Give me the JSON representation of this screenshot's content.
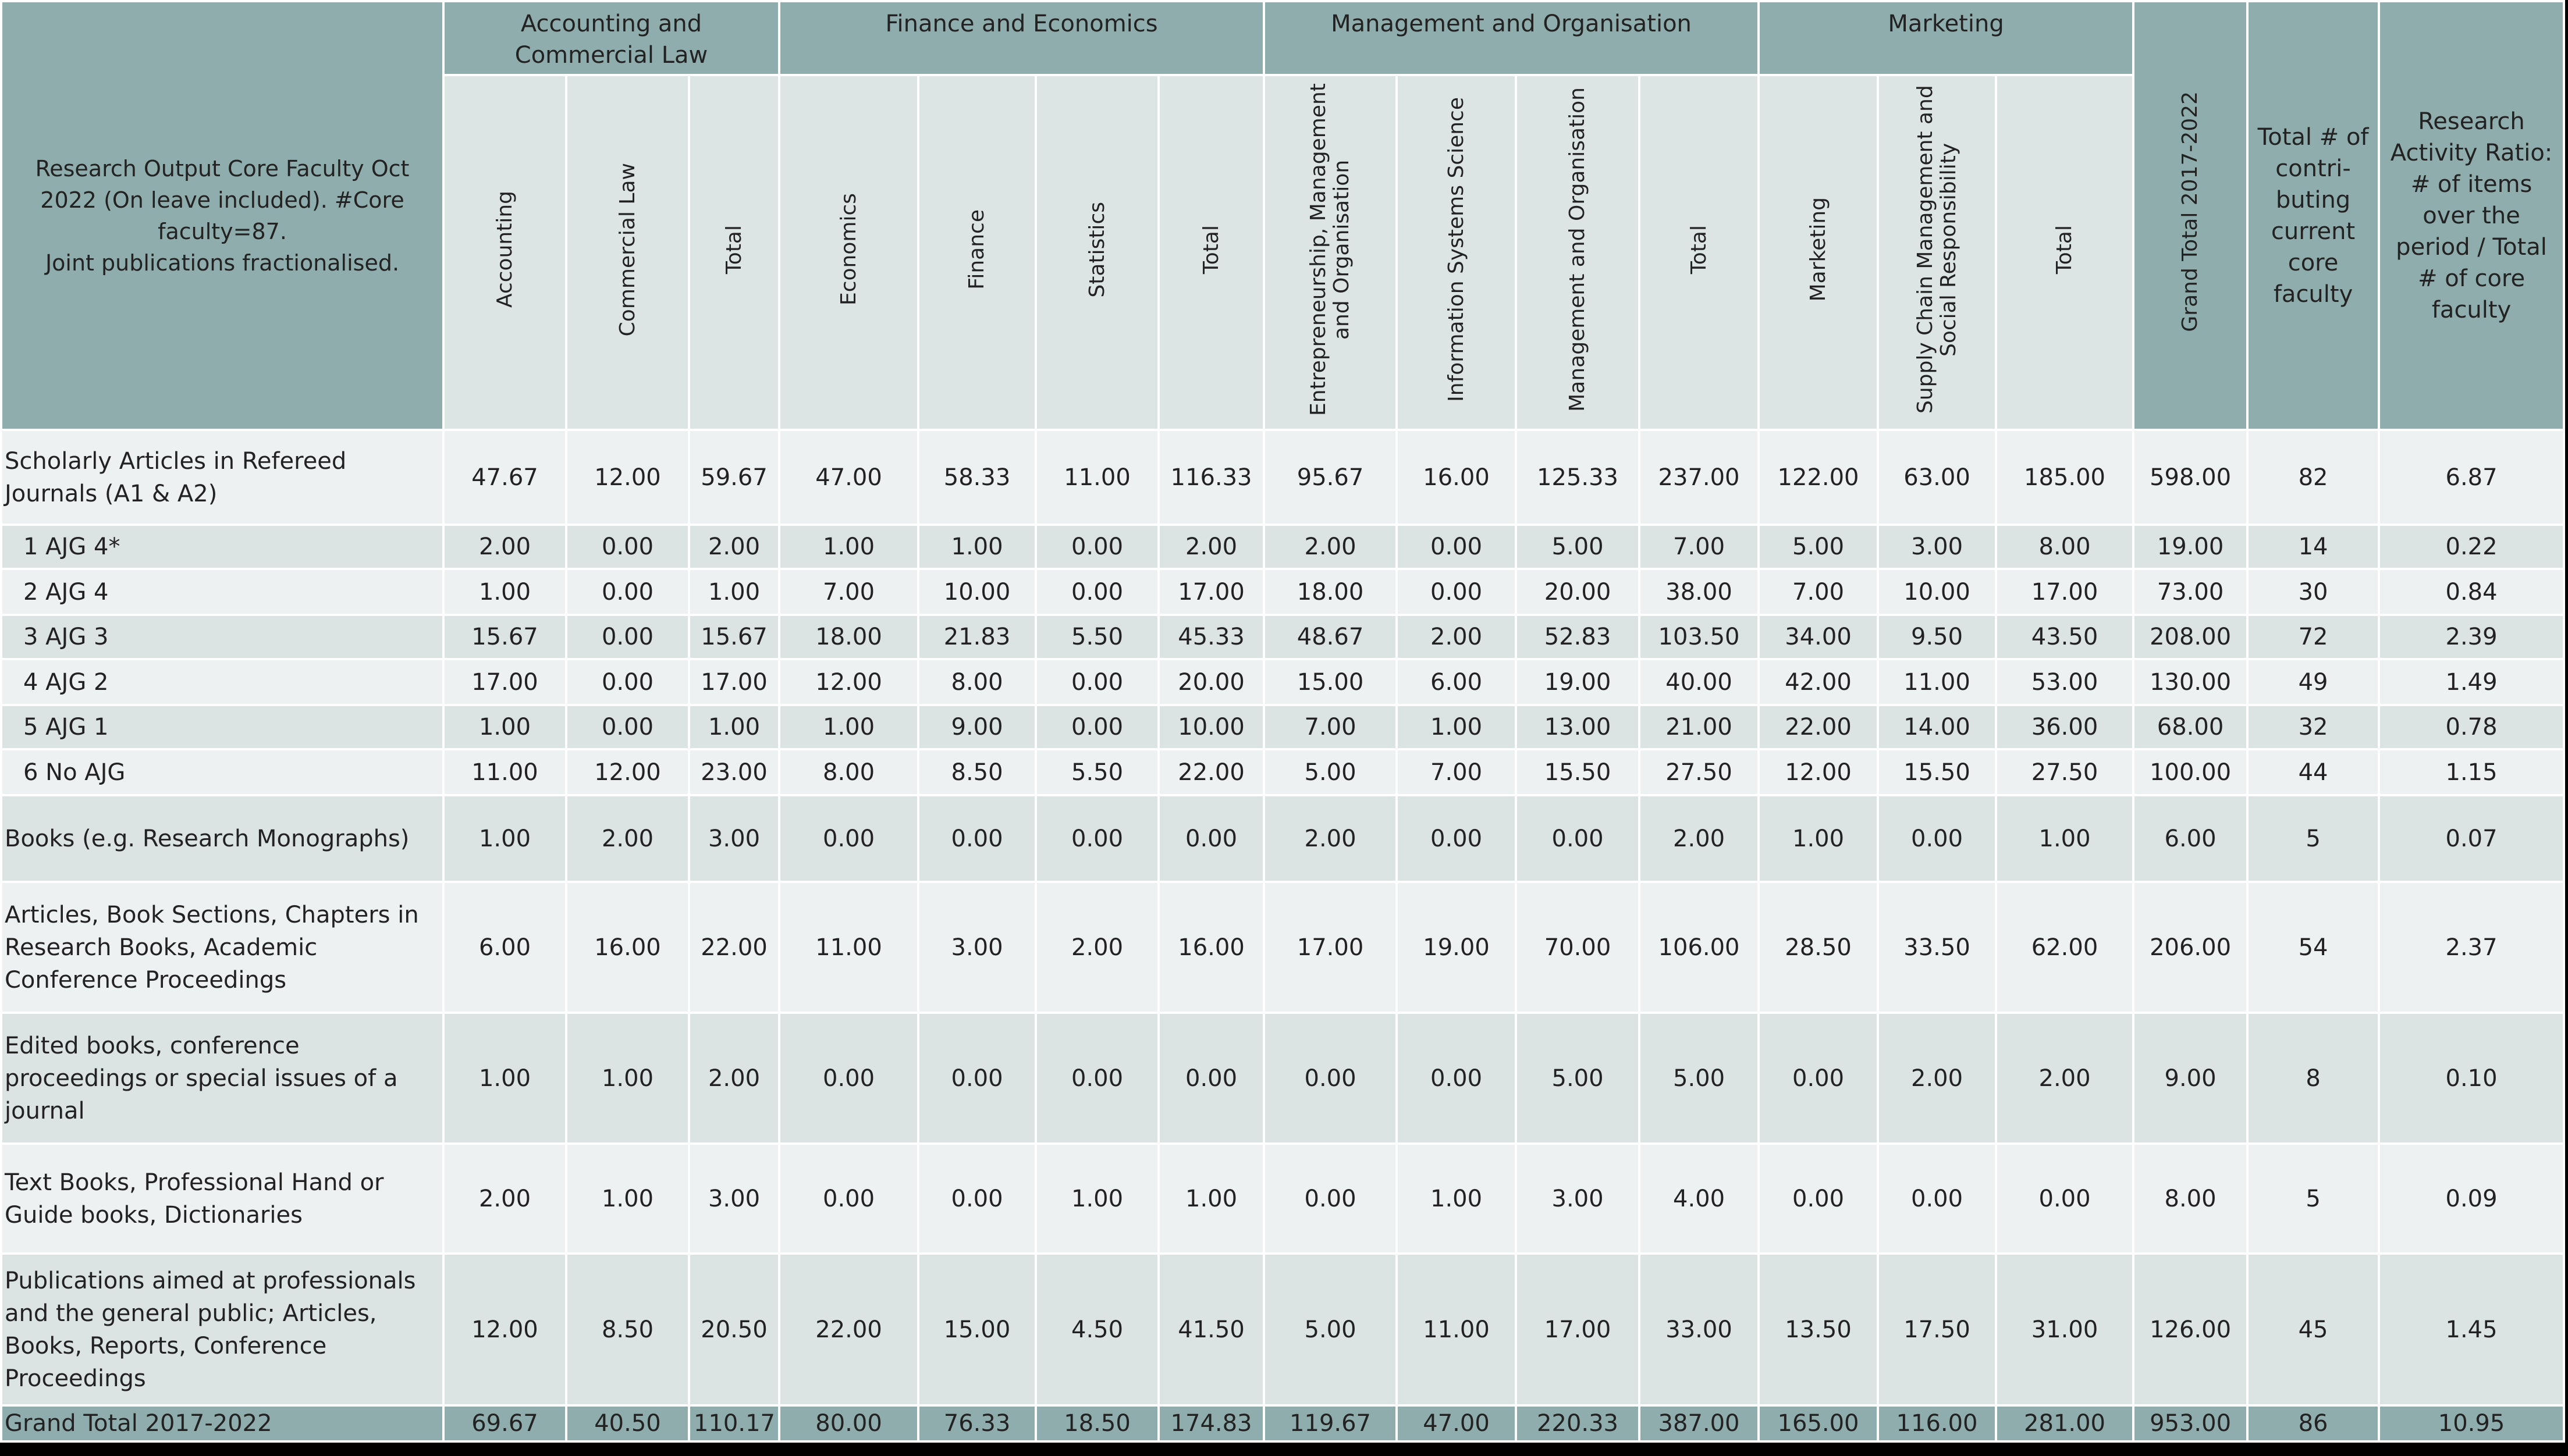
{
  "table": {
    "corner": "Research Output Core Faculty Oct 2022 (On leave included). #Core faculty=87.\nJoint publications fractionalised.",
    "groups": [
      {
        "name": "Accounting and Commercial Law",
        "columns": [
          "Accounting",
          "Commercial Law",
          "Total"
        ]
      },
      {
        "name": "Finance and Economics",
        "columns": [
          "Economics",
          "Finance",
          "Statistics",
          "Total"
        ]
      },
      {
        "name": "Management and Organisation",
        "columns": [
          "Entrepreneurship, Management and Organisation",
          "Information Systems Science",
          "Management and Organisation",
          "Total"
        ]
      },
      {
        "name": "Marketing",
        "columns": [
          "Marketing",
          "Supply Chain Management and Social Responsibility",
          "Total"
        ]
      }
    ],
    "extra_columns": [
      "Grand Total 2017-2022",
      "Total # of contri-buting current core faculty",
      "Research Activity Ratio: # of items over the period / Total # of core faculty"
    ],
    "rows": [
      {
        "label": "Scholarly Articles in Refereed Journals (A1 & A2)",
        "cells": [
          "47.67",
          "12.00",
          "59.67",
          "47.00",
          "58.33",
          "11.00",
          "116.33",
          "95.67",
          "16.00",
          "125.33",
          "237.00",
          "122.00",
          "63.00",
          "185.00",
          "598.00",
          "82",
          "6.87"
        ],
        "subrows": [
          {
            "label": "1 AJG 4*",
            "cells": [
              "2.00",
              "0.00",
              "2.00",
              "1.00",
              "1.00",
              "0.00",
              "2.00",
              "2.00",
              "0.00",
              "5.00",
              "7.00",
              "5.00",
              "3.00",
              "8.00",
              "19.00",
              "14",
              "0.22"
            ]
          },
          {
            "label": "2 AJG 4",
            "cells": [
              "1.00",
              "0.00",
              "1.00",
              "7.00",
              "10.00",
              "0.00",
              "17.00",
              "18.00",
              "0.00",
              "20.00",
              "38.00",
              "7.00",
              "10.00",
              "17.00",
              "73.00",
              "30",
              "0.84"
            ]
          },
          {
            "label": "3 AJG 3",
            "cells": [
              "15.67",
              "0.00",
              "15.67",
              "18.00",
              "21.83",
              "5.50",
              "45.33",
              "48.67",
              "2.00",
              "52.83",
              "103.50",
              "34.00",
              "9.50",
              "43.50",
              "208.00",
              "72",
              "2.39"
            ]
          },
          {
            "label": "4 AJG 2",
            "cells": [
              "17.00",
              "0.00",
              "17.00",
              "12.00",
              "8.00",
              "0.00",
              "20.00",
              "15.00",
              "6.00",
              "19.00",
              "40.00",
              "42.00",
              "11.00",
              "53.00",
              "130.00",
              "49",
              "1.49"
            ]
          },
          {
            "label": "5 AJG 1",
            "cells": [
              "1.00",
              "0.00",
              "1.00",
              "1.00",
              "9.00",
              "0.00",
              "10.00",
              "7.00",
              "1.00",
              "13.00",
              "21.00",
              "22.00",
              "14.00",
              "36.00",
              "68.00",
              "32",
              "0.78"
            ]
          },
          {
            "label": "6 No AJG",
            "cells": [
              "11.00",
              "12.00",
              "23.00",
              "8.00",
              "8.50",
              "5.50",
              "22.00",
              "5.00",
              "7.00",
              "15.50",
              "27.50",
              "12.00",
              "15.50",
              "27.50",
              "100.00",
              "44",
              "1.15"
            ]
          }
        ]
      },
      {
        "label": "Books (e.g. Research Monographs)",
        "cells": [
          "1.00",
          "2.00",
          "3.00",
          "0.00",
          "0.00",
          "0.00",
          "0.00",
          "2.00",
          "0.00",
          "0.00",
          "2.00",
          "1.00",
          "0.00",
          "1.00",
          "6.00",
          "5",
          "0.07"
        ]
      },
      {
        "label": "Articles, Book Sections, Chapters in Research Books, Academic Conference Proceedings",
        "cells": [
          "6.00",
          "16.00",
          "22.00",
          "11.00",
          "3.00",
          "2.00",
          "16.00",
          "17.00",
          "19.00",
          "70.00",
          "106.00",
          "28.50",
          "33.50",
          "62.00",
          "206.00",
          "54",
          "2.37"
        ]
      },
      {
        "label": "Edited books, conference proceedings or special issues of a journal",
        "cells": [
          "1.00",
          "1.00",
          "2.00",
          "0.00",
          "0.00",
          "0.00",
          "0.00",
          "0.00",
          "0.00",
          "5.00",
          "5.00",
          "0.00",
          "2.00",
          "2.00",
          "9.00",
          "8",
          "0.10"
        ]
      },
      {
        "label": "Text Books, Professional Hand or Guide books, Dictionaries",
        "cells": [
          "2.00",
          "1.00",
          "3.00",
          "0.00",
          "0.00",
          "1.00",
          "1.00",
          "0.00",
          "1.00",
          "3.00",
          "4.00",
          "0.00",
          "0.00",
          "0.00",
          "8.00",
          "5",
          "0.09"
        ]
      },
      {
        "label": "Publications aimed at professionals and the general public; Articles, Books, Reports, Conference Proceedings",
        "cells": [
          "12.00",
          "8.50",
          "20.50",
          "22.00",
          "15.00",
          "4.50",
          "41.50",
          "5.00",
          "11.00",
          "17.00",
          "33.00",
          "13.50",
          "17.50",
          "31.00",
          "126.00",
          "45",
          "1.45"
        ]
      }
    ],
    "total_row": {
      "label": "Grand Total 2017-2022",
      "cells": [
        "69.67",
        "40.50",
        "110.17",
        "80.00",
        "76.33",
        "18.50",
        "174.83",
        "119.67",
        "47.00",
        "220.33",
        "387.00",
        "165.00",
        "116.00",
        "281.00",
        "953.00",
        "86",
        "10.95"
      ]
    }
  }
}
